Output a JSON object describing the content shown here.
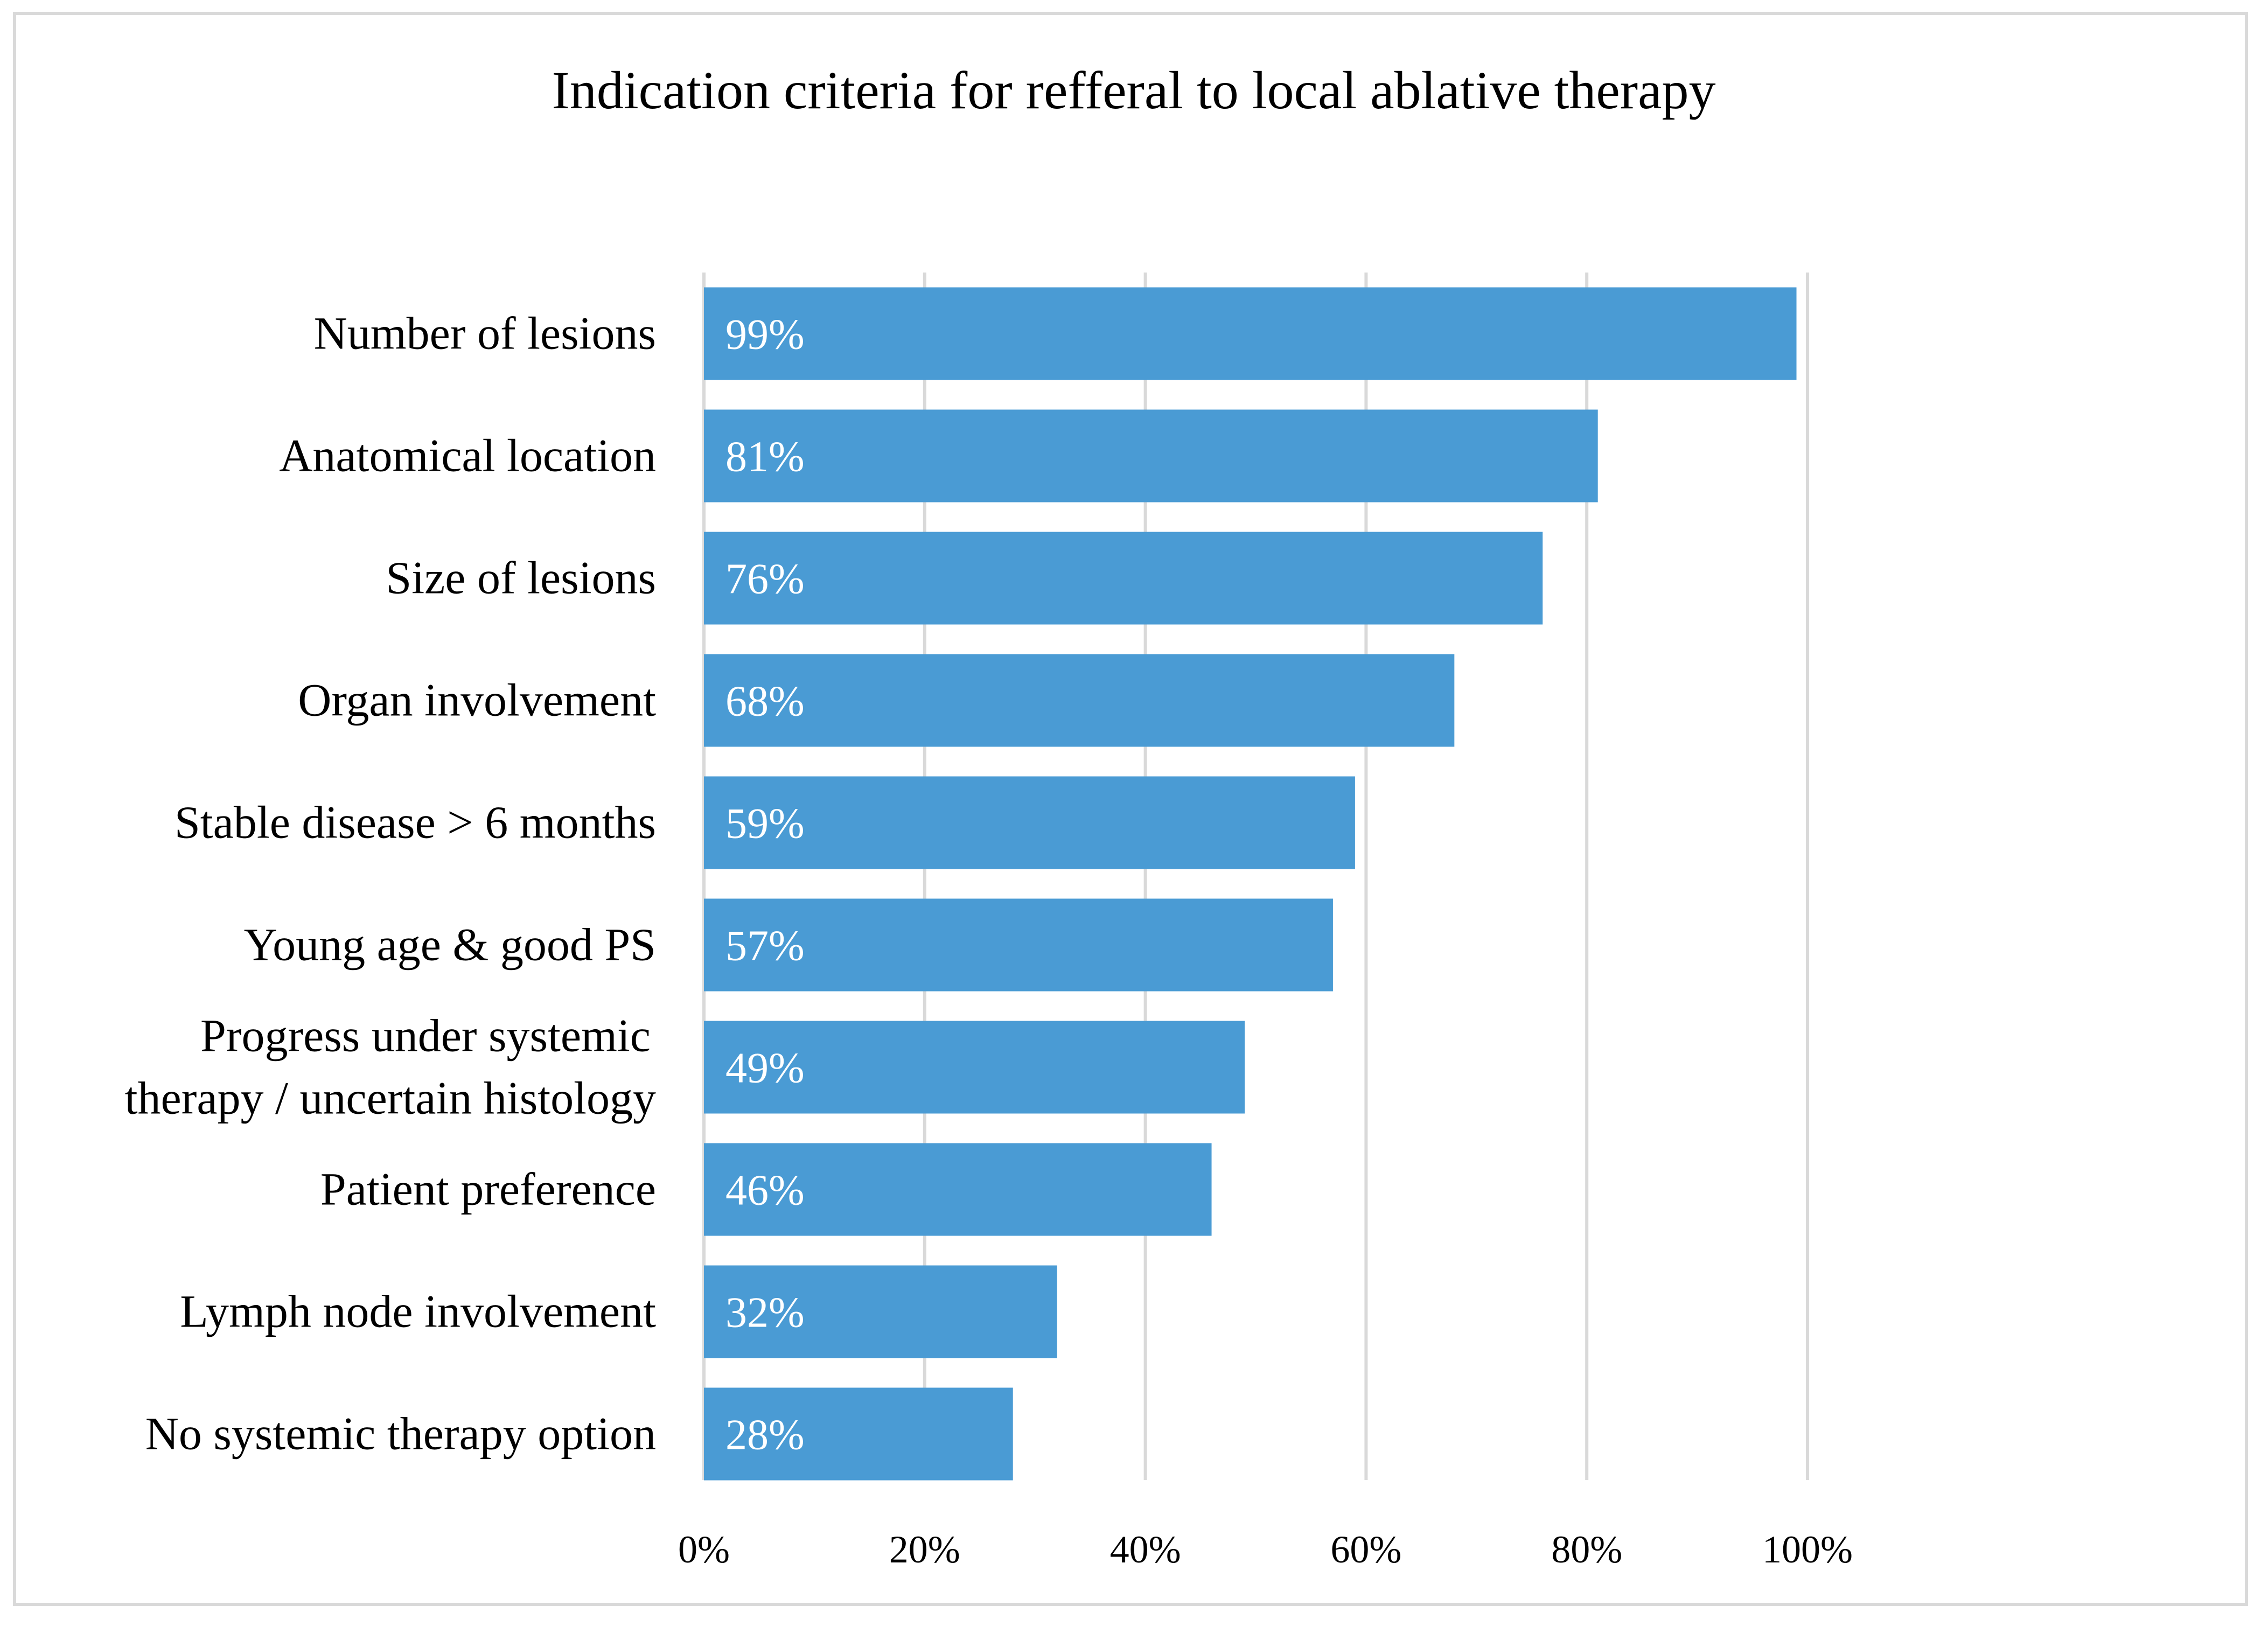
{
  "chart_data": {
    "type": "bar",
    "orientation": "horizontal",
    "title": "Indication criteria for refferal to local ablative therapy",
    "categories": [
      "Number of lesions",
      "Anatomical location",
      "Size of lesions",
      "Organ involvement",
      "Stable disease > 6 months",
      "Young age & good PS",
      "Progress under systemic therapy / uncertain histology",
      "Patient preference",
      "Lymph node involvement",
      "No systemic therapy option"
    ],
    "category_lines": [
      [
        "Number of lesions"
      ],
      [
        "Anatomical location"
      ],
      [
        "Size of lesions"
      ],
      [
        "Organ involvement"
      ],
      [
        "Stable disease > 6 months"
      ],
      [
        "Young age & good PS"
      ],
      [
        "Progress under systemic",
        "therapy / uncertain histology"
      ],
      [
        "Patient preference"
      ],
      [
        "Lymph node involvement"
      ],
      [
        "No systemic therapy option"
      ]
    ],
    "values": [
      0.99,
      0.81,
      0.76,
      0.68,
      0.59,
      0.57,
      0.49,
      0.46,
      0.32,
      0.28
    ],
    "data_labels": [
      "99%",
      "81%",
      "76%",
      "68%",
      "59%",
      "57%",
      "49%",
      "46%",
      "32%",
      "28%"
    ],
    "xlim": [
      0,
      1
    ],
    "x_ticks": [
      0,
      0.2,
      0.4,
      0.6,
      0.8,
      1.0
    ],
    "x_tick_labels": [
      "0%",
      "20%",
      "40%",
      "60%",
      "80%",
      "100%"
    ],
    "xlabel": "",
    "ylabel": "",
    "grid": "vertical",
    "legend": "none",
    "bar_color": "#4a9bd4",
    "label_color": "#ffffff",
    "grid_color": "#d9d9d9"
  }
}
